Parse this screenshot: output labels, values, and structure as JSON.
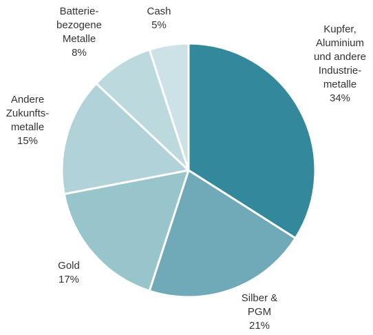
{
  "chart_data": {
    "type": "pie",
    "start_angle_deg": 0,
    "direction": "clockwise",
    "slices": [
      {
        "label_lines": [
          "Kupfer,",
          "Aluminium",
          "und andere",
          "Industrie-",
          "metalle"
        ],
        "value_label": "34%",
        "value": 34,
        "color": "#33889c"
      },
      {
        "label_lines": [
          "Silber &",
          "PGM"
        ],
        "value_label": "21%",
        "value": 21,
        "color": "#70aab9"
      },
      {
        "label_lines": [
          "Gold"
        ],
        "value_label": "17%",
        "value": 17,
        "color": "#98c4cc"
      },
      {
        "label_lines": [
          "Andere",
          "Zukunfts-",
          "metalle"
        ],
        "value_label": "15%",
        "value": 15,
        "color": "#b0d2d8"
      },
      {
        "label_lines": [
          "Batterie-",
          "bezogene",
          "Metalle"
        ],
        "value_label": "8%",
        "value": 8,
        "color": "#bcd9de"
      },
      {
        "label_lines": [
          "Cash"
        ],
        "value_label": "5%",
        "value": 5,
        "color": "#cde2e7"
      }
    ]
  }
}
